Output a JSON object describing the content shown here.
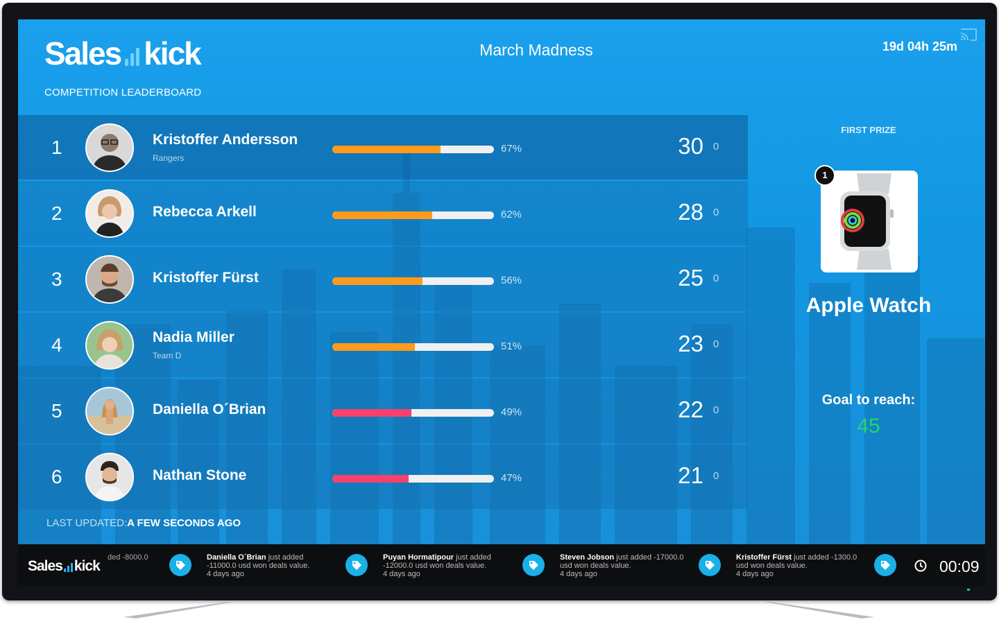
{
  "header": {
    "brand_left": "Sales",
    "brand_right": "kick",
    "subtitle": "COMPETITION LEADERBOARD",
    "competition_title": "March Madness",
    "countdown": "19d 04h 25m"
  },
  "leaderboard": [
    {
      "rank": "1",
      "name": "Kristoffer Andersson",
      "team": "Rangers",
      "progress": 67,
      "progress_label": "67%",
      "score": "30",
      "extra": "0",
      "bar_color": "#ff9a1a"
    },
    {
      "rank": "2",
      "name": "Rebecca Arkell",
      "team": "",
      "progress": 62,
      "progress_label": "62%",
      "score": "28",
      "extra": "0",
      "bar_color": "#ff9a1a"
    },
    {
      "rank": "3",
      "name": "Kristoffer Fürst",
      "team": "",
      "progress": 56,
      "progress_label": "56%",
      "score": "25",
      "extra": "0",
      "bar_color": "#ff9a1a"
    },
    {
      "rank": "4",
      "name": "Nadia Miller",
      "team": "Team D",
      "progress": 51,
      "progress_label": "51%",
      "score": "23",
      "extra": "0",
      "bar_color": "#ff9a1a"
    },
    {
      "rank": "5",
      "name": "Daniella O´Brian",
      "team": "",
      "progress": 49,
      "progress_label": "49%",
      "score": "22",
      "extra": "0",
      "bar_color": "#f5416b"
    },
    {
      "rank": "6",
      "name": "Nathan Stone",
      "team": "",
      "progress": 47,
      "progress_label": "47%",
      "score": "21",
      "extra": "0",
      "bar_color": "#f5416b"
    }
  ],
  "prize": {
    "label": "FIRST PRIZE",
    "badge": "1",
    "name": "Apple Watch",
    "goal_label": "Goal to reach:",
    "goal_value": "45",
    "goal_color": "#22d66a"
  },
  "status": {
    "updated_prefix": "LAST UPDATED:",
    "updated_value": "A FEW SECONDS AGO"
  },
  "ticker": {
    "brand_left": "Sales",
    "brand_right": "kick",
    "cut_text": "ded -8000.0",
    "items": [
      {
        "name": "Daniella O´Brian",
        "action": " just added",
        "detail": "-11000.0 usd won deals value.",
        "time": "4 days ago"
      },
      {
        "name": "Puyan Hormatipour",
        "action": " just added",
        "detail": "-12000.0 usd won deals value.",
        "time": "4 days ago"
      },
      {
        "name": "Steven Jobson",
        "action": " just added -17000.0",
        "detail": "usd won deals value.",
        "time": "4 days ago"
      },
      {
        "name": "Kristoffer Fürst",
        "action": " just added -1300.0",
        "detail": "usd won deals value.",
        "time": "4 days ago"
      }
    ],
    "timer": "00:09"
  },
  "colors": {
    "accent": "#1aa0ec",
    "bar_orange": "#ff9a1a",
    "bar_red": "#f5416b",
    "ticker_tag": "#1ab0e8"
  }
}
